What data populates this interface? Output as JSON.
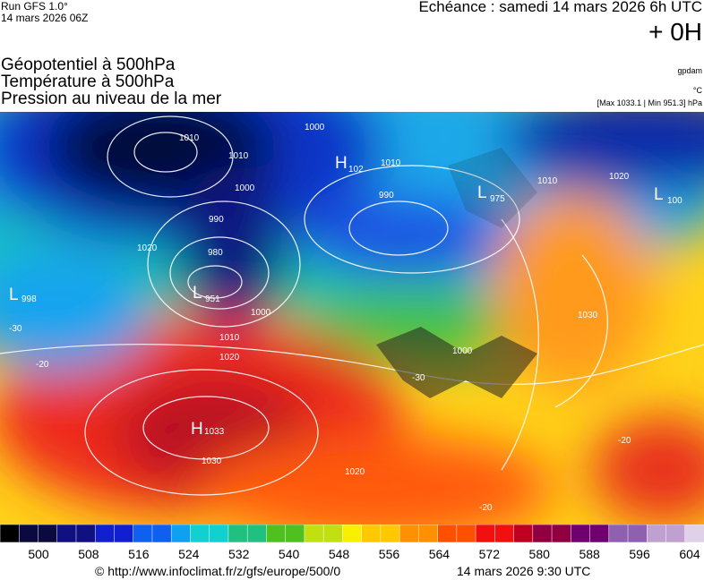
{
  "header": {
    "run": "Run GFS 1.0°",
    "run_date": "14 mars 2026 06Z",
    "echeance": "Echéance : samedi 14 mars 2026 6h UTC",
    "lead": "+ 0H",
    "titles": [
      "Géopotentiel à 500hPa",
      "Température à 500hPa",
      "Pression au niveau de la mer"
    ],
    "units": [
      "gpdam",
      "°C",
      "[Max 1033.1 | Min 951.3] hPa"
    ]
  },
  "map": {
    "centers": [
      {
        "letter": "H",
        "value": "1033"
      },
      {
        "letter": "L",
        "value": "951"
      },
      {
        "letter": "L",
        "value": "998"
      },
      {
        "letter": "L",
        "value": "975"
      },
      {
        "letter": "H",
        "value": "102"
      },
      {
        "letter": "L",
        "value": "100"
      }
    ],
    "isobar_labels": [
      "1010",
      "1010",
      "1000",
      "1000",
      "990",
      "980",
      "1020",
      "1010",
      "1000",
      "1020",
      "1030",
      "1010",
      "1030",
      "1020",
      "1000",
      "990",
      "1010",
      "1020",
      "-30",
      "-20",
      "-30",
      "-20",
      "-20"
    ]
  },
  "colorbar": {
    "labels": [
      500,
      508,
      516,
      524,
      532,
      540,
      548,
      556,
      564,
      572,
      580,
      588,
      596,
      604
    ]
  },
  "footer": {
    "url": "© http://www.infoclimat.fr/z/gfs/europe/500/0",
    "date": "14 mars 2026  9:30 UTC"
  }
}
